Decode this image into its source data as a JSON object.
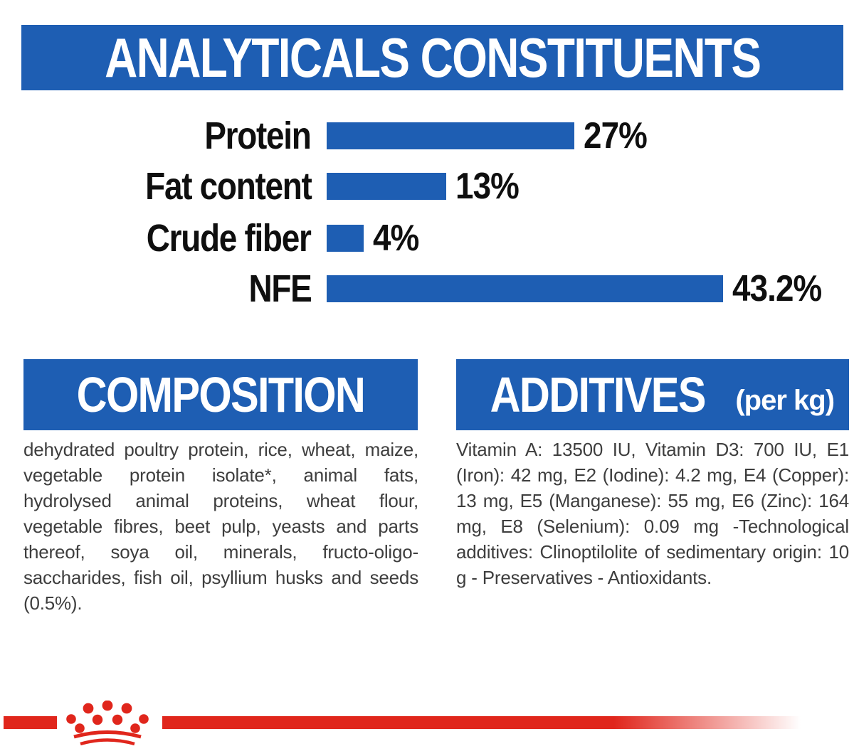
{
  "colors": {
    "banner_blue": "#1e5eb3",
    "bar_blue": "#1e5eb3",
    "logo_red": "#e0261c",
    "body_text": "#3e3e3e",
    "chart_text": "#0f0f0f",
    "banner_text": "#ffffff"
  },
  "header": {
    "title": "ANALYTICALS CONSTITUENTS"
  },
  "chart_data": {
    "type": "bar",
    "orientation": "horizontal",
    "title": "ANALYTICALS CONSTITUENTS",
    "categories": [
      "Protein",
      "Fat content",
      "Crude fiber",
      "NFE"
    ],
    "values": [
      27,
      13,
      4,
      43.2
    ],
    "value_labels": [
      "27%",
      "13%",
      "4%",
      "43.2%"
    ],
    "unit": "%",
    "xlim": [
      0,
      45
    ],
    "grid": false,
    "legend": false,
    "bar_color": "#1e5eb3"
  },
  "composition": {
    "title": "COMPOSITION",
    "body": "dehydrated poultry protein, rice, wheat, maize, vegetable protein isolate*, animal fats, hydrolysed animal proteins, wheat flour, vegetable fibres, beet pulp, yeasts and parts thereof, soya oil, minerals, fructo-oligo-saccharides, fish oil, psyllium husks and seeds (0.5%)."
  },
  "additives": {
    "title": "ADDITIVES",
    "suffix": "(per kg)",
    "body": "Vitamin A: 13500 IU, Vitamin D3: 700 IU, E1 (Iron): 42 mg, E2 (Iodine): 4.2 mg, E4 (Copper): 13 mg, E5 (Manganese): 55 mg, E6 (Zinc): 164 mg, E8 (Selenium): 0.09 mg -Technological additives: Clinoptilolite of sedimentary origin: 10 g - Preservatives - Antioxidants."
  },
  "footer": {
    "logo_icon": "royal-canin-crown-icon"
  }
}
